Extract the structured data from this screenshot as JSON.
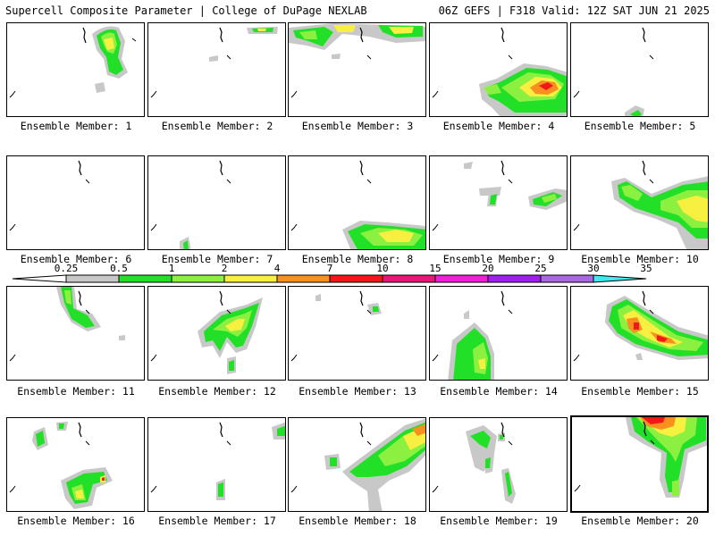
{
  "header": {
    "title": "Supercell Composite Parameter | College of DuPage NEXLAB",
    "run_info": "06Z GEFS | F318 Valid: 12Z SAT JUN 21 2025"
  },
  "colorbar": {
    "ticks": [
      "0.25",
      "0.5",
      "1",
      "2",
      "4",
      "7",
      "10",
      "15",
      "20",
      "25",
      "30",
      "35"
    ],
    "colors": [
      "#c8c8c8",
      "#22e028",
      "#8cf040",
      "#f8f040",
      "#f89020",
      "#f01818",
      "#e81878",
      "#f020d8",
      "#a020f0",
      "#a868e0",
      "#40e8f0"
    ]
  },
  "panels": [
    {
      "label": "Ensemble Member: 1"
    },
    {
      "label": "Ensemble Member: 2"
    },
    {
      "label": "Ensemble Member: 3"
    },
    {
      "label": "Ensemble Member: 4"
    },
    {
      "label": "Ensemble Member: 5"
    },
    {
      "label": "Ensemble Member: 6"
    },
    {
      "label": "Ensemble Member: 7"
    },
    {
      "label": "Ensemble Member: 8"
    },
    {
      "label": "Ensemble Member: 9"
    },
    {
      "label": "Ensemble Member: 10"
    },
    {
      "label": "Ensemble Member: 11"
    },
    {
      "label": "Ensemble Member: 12"
    },
    {
      "label": "Ensemble Member: 13"
    },
    {
      "label": "Ensemble Member: 14"
    },
    {
      "label": "Ensemble Member: 15"
    },
    {
      "label": "Ensemble Member: 16"
    },
    {
      "label": "Ensemble Member: 17"
    },
    {
      "label": "Ensemble Member: 18"
    },
    {
      "label": "Ensemble Member: 19"
    },
    {
      "label": "Ensemble Member: 20",
      "selected": true
    }
  ]
}
